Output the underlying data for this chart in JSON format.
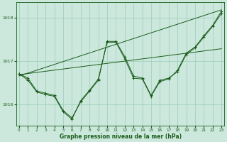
{
  "xlabel": "Graphe pression niveau de la mer (hPa)",
  "bg_color": "#cce8dd",
  "grid_color": "#99ccbb",
  "line_color": "#1a5c1a",
  "ylim": [
    1015.5,
    1018.35
  ],
  "xlim": [
    -0.3,
    23.3
  ],
  "yticks": [
    1016,
    1017,
    1018
  ],
  "xticks": [
    0,
    1,
    2,
    3,
    4,
    5,
    6,
    7,
    8,
    9,
    10,
    11,
    12,
    13,
    14,
    15,
    16,
    17,
    18,
    19,
    20,
    21,
    22,
    23
  ],
  "line1": [
    1016.7,
    1016.6,
    1016.3,
    1016.25,
    1016.2,
    1015.85,
    1015.68,
    1016.05,
    1016.3,
    1016.55,
    1017.45,
    1017.45,
    1017.1,
    1016.65,
    1016.6,
    1016.2,
    1016.55,
    1016.6,
    1016.75,
    1017.15,
    1017.3,
    1017.55,
    1017.8,
    1018.1
  ],
  "line2": [
    1016.7,
    1016.55,
    1016.28,
    1016.22,
    1016.18,
    1015.82,
    1015.65,
    1016.08,
    1016.32,
    1016.58,
    1017.43,
    1017.43,
    1017.05,
    1016.6,
    1016.58,
    1016.18,
    1016.52,
    1016.58,
    1016.78,
    1017.18,
    1017.32,
    1017.58,
    1017.82,
    1018.15
  ],
  "trend1_x": [
    0,
    23
  ],
  "trend1_y": [
    1016.68,
    1017.28
  ],
  "trend2_x": [
    0,
    23
  ],
  "trend2_y": [
    1016.65,
    1018.18
  ]
}
